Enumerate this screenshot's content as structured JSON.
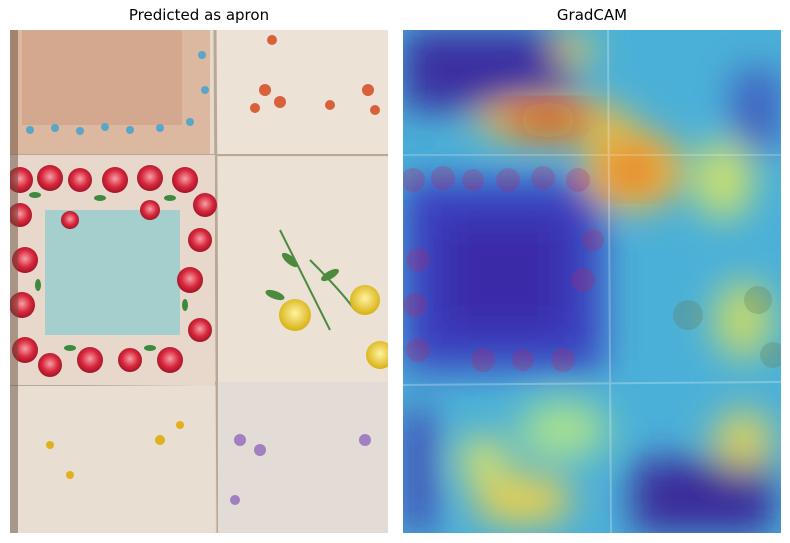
{
  "panels": [
    {
      "title": "Predicted as apron",
      "image": "floral-handkerchief-quilt-photo"
    },
    {
      "title": "GradCAM",
      "image": "gradcam-heatmap-overlay"
    }
  ],
  "colors": {
    "fabric_cream": "#e9ddd0",
    "peach_patch": "#d8ad92",
    "aqua_patch": "#a8d2cf",
    "rose_red": "#d2283a",
    "leaf_green": "#3d8a3c",
    "heat_hot": "#c21a10",
    "heat_warm": "#f2c230",
    "heat_cool": "#3aa5d8",
    "heat_cold": "#3a2fa0"
  }
}
